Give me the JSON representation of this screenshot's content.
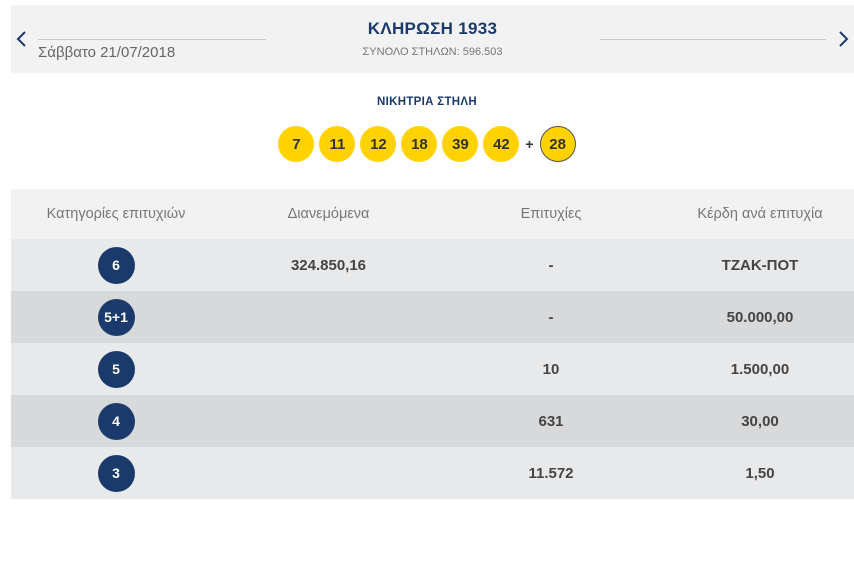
{
  "header": {
    "date": "Σάββατο 21/07/2018",
    "title": "ΚΛΗΡΩΣΗ 1933",
    "total_columns": "ΣΥΝΟΛΟ ΣΤΗΛΩΝ: 596.503",
    "prev_icon": "chevron-left-icon",
    "next_icon": "chevron-right-icon"
  },
  "winning": {
    "label": "ΝΙΚΗΤΡΙΑ ΣΤΗΛΗ",
    "numbers": [
      "7",
      "11",
      "12",
      "18",
      "39",
      "42"
    ],
    "plus": "+",
    "joker": "28"
  },
  "table": {
    "headers": [
      "Κατηγορίες επιτυχιών",
      "Διανεμόμενα",
      "Επιτυχίες",
      "Κέρδη ανά επιτυχία"
    ],
    "rows": [
      {
        "category": "6",
        "distributed": "324.850,16",
        "winners": "-",
        "prize": "ΤΖΑΚ-ΠΟΤ"
      },
      {
        "category": "5+1",
        "distributed": "",
        "winners": "-",
        "prize": "50.000,00"
      },
      {
        "category": "5",
        "distributed": "",
        "winners": "10",
        "prize": "1.500,00"
      },
      {
        "category": "4",
        "distributed": "",
        "winners": "631",
        "prize": "30,00"
      },
      {
        "category": "3",
        "distributed": "",
        "winners": "11.572",
        "prize": "1,50"
      }
    ]
  },
  "colors": {
    "navy": "#1a3a6b",
    "ball_yellow": "#ffd200",
    "row_light": "#e8e9ea",
    "row_dark": "#d8d9da"
  }
}
